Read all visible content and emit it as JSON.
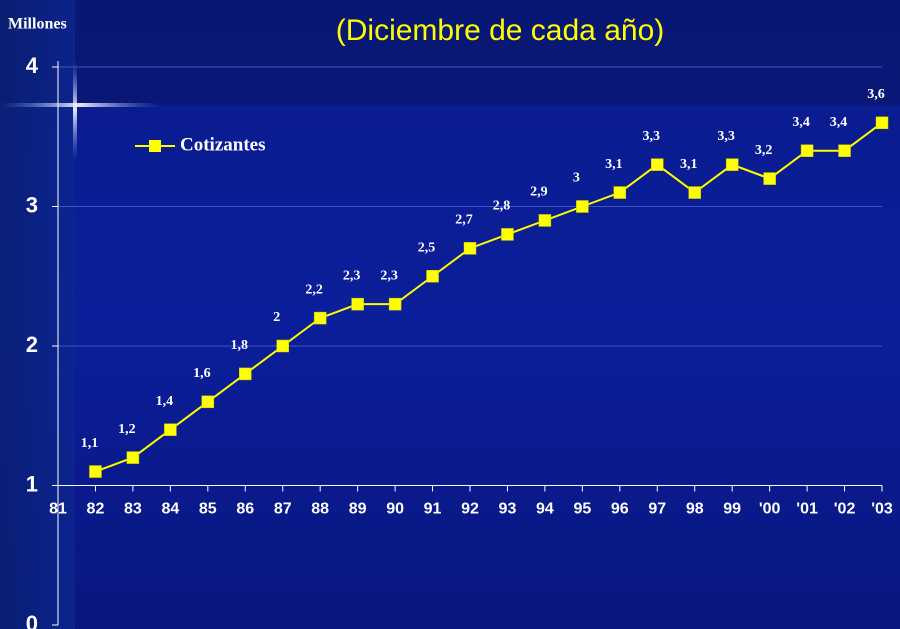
{
  "chart_data": {
    "type": "line",
    "title": "(Diciembre de cada año)",
    "y_label": "Millones",
    "categories": [
      "81",
      "82",
      "83",
      "84",
      "85",
      "86",
      "87",
      "88",
      "89",
      "90",
      "91",
      "92",
      "93",
      "94",
      "95",
      "96",
      "97",
      "98",
      "99",
      "'00",
      "'01",
      "'02",
      "'03"
    ],
    "series": [
      {
        "name": "Cotizantes",
        "color": "#ffff00",
        "values": [
          null,
          1.1,
          1.2,
          1.4,
          1.6,
          1.8,
          2,
          2.2,
          2.3,
          2.3,
          2.5,
          2.7,
          2.8,
          2.9,
          3,
          3.1,
          3.3,
          3.1,
          3.3,
          3.2,
          3.4,
          3.4,
          3.6
        ],
        "value_labels": [
          null,
          "1,1",
          "1,2",
          "1,4",
          "1,6",
          "1,8",
          "2",
          "2,2",
          "2,3",
          "2,3",
          "2,5",
          "2,7",
          "2,8",
          "2,9",
          "3",
          "3,1",
          "3,3",
          "3,1",
          "3,3",
          "3,2",
          "3,4",
          "3,4",
          "3,6"
        ]
      }
    ],
    "ylim": [
      0,
      4
    ],
    "yticks": [
      0,
      1,
      2,
      3,
      4
    ],
    "xaxis_crosses": 1,
    "grid": true,
    "legend": "top-left"
  }
}
